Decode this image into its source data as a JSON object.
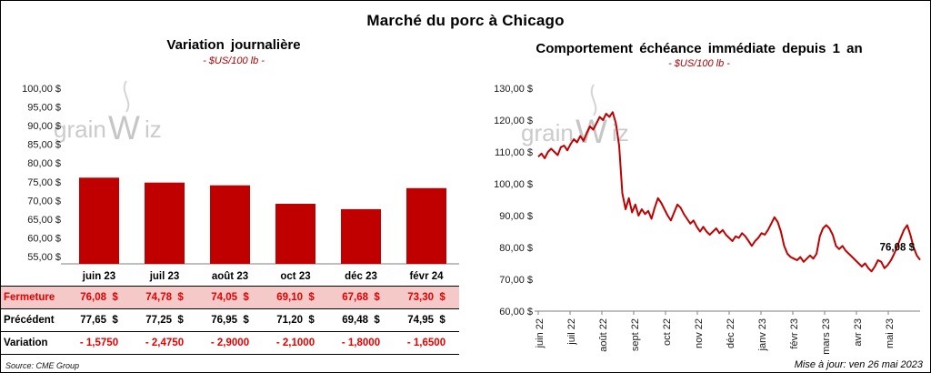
{
  "page": {
    "title": "Marché du porc à Chicago",
    "source": "Source: CME Group",
    "updated": "Mise à jour: ven 26 mai 2023",
    "watermark_parts": [
      "grain",
      "W",
      "iz"
    ]
  },
  "colors": {
    "bar": "#c00000",
    "line": "#c00000",
    "highlight_row_bg": "#f6c9c9",
    "table_red": "#e60000",
    "subtitle_red": "#b00000"
  },
  "chart_data": [
    {
      "type": "bar",
      "title": "Variation journalière",
      "subtitle": "- $US/100 lb -",
      "categories": [
        "juin 23",
        "juil 23",
        "août 23",
        "oct 23",
        "déc 23",
        "févr 24"
      ],
      "values": [
        76.08,
        74.78,
        74.05,
        69.1,
        67.68,
        73.3
      ],
      "ylim": [
        53,
        101.5
      ],
      "yticks": [
        55,
        60,
        65,
        70,
        75,
        80,
        85,
        90,
        95,
        100
      ],
      "ytick_labels": [
        "55,00 $",
        "60,00 $",
        "65,00 $",
        "70,00 $",
        "75,00 $",
        "80,00 $",
        "85,00 $",
        "90,00 $",
        "95,00 $",
        "100,00 $"
      ],
      "grid": false,
      "legend": false
    },
    {
      "type": "line",
      "title": "Comportement échéance immédiate depuis 1 an",
      "subtitle": "- $US/100 lb -",
      "x_labels": [
        "juin 22",
        "juil 22",
        "août 22",
        "sept 22",
        "oct 22",
        "nov 22",
        "déc 22",
        "janv 23",
        "févr 23",
        "mars 23",
        "avr 23",
        "mai 23"
      ],
      "values": [
        108.5,
        109.5,
        108,
        110,
        111,
        110,
        109,
        111.5,
        112,
        110.5,
        112.5,
        114,
        113,
        115,
        113.5,
        116,
        118,
        117,
        119,
        121,
        120,
        122,
        121,
        122.5,
        119,
        112,
        97,
        92,
        95.5,
        91,
        93.5,
        90,
        92,
        90.5,
        91.5,
        89,
        92.5,
        95.5,
        94,
        92,
        90,
        88.5,
        91,
        93.5,
        92.5,
        90.5,
        89,
        87.5,
        88.5,
        86.5,
        85,
        86.5,
        85,
        84,
        85,
        86,
        84.5,
        85.5,
        84,
        83,
        82,
        83.5,
        83,
        84.5,
        83.5,
        82,
        80.5,
        82,
        83,
        84.5,
        84,
        85.5,
        87.5,
        89.5,
        88,
        85,
        80.5,
        78,
        77,
        76.5,
        76,
        77,
        75.5,
        76.5,
        77.5,
        76.5,
        78,
        83.5,
        86,
        87,
        86,
        84,
        80.5,
        79.5,
        80.5,
        79,
        78,
        77,
        76,
        75,
        74,
        75,
        73.5,
        72.5,
        74,
        76,
        75.5,
        73.5,
        74.5,
        76,
        78,
        80.5,
        83,
        85.5,
        87,
        84,
        80,
        77.5,
        76.08
      ],
      "ylim": [
        57,
        132
      ],
      "yticks": [
        60,
        70,
        80,
        90,
        100,
        110,
        120,
        130
      ],
      "ytick_labels": [
        "60,00 $",
        "70,00 $",
        "80,00 $",
        "90,00 $",
        "100,00 $",
        "110,00 $",
        "120,00 $",
        "130,00 $"
      ],
      "end_label": "76,08 $",
      "grid": false,
      "legend": false
    }
  ],
  "table": {
    "months": [
      "juin 23",
      "juil 23",
      "août 23",
      "oct 23",
      "déc 23",
      "févr 24"
    ],
    "rows": [
      {
        "label": "Fermeture",
        "style": "highlight",
        "values": [
          "76,08  $",
          "74,78  $",
          "74,05  $",
          "69,10  $",
          "67,68  $",
          "73,30  $"
        ]
      },
      {
        "label": "Précédent",
        "style": "normal",
        "values": [
          "77,65  $",
          "77,25  $",
          "76,95  $",
          "71,20  $",
          "69,48  $",
          "74,95  $"
        ]
      },
      {
        "label": "Variation",
        "style": "variation",
        "values": [
          "- 1,5750",
          "- 2,4750",
          "- 2,9000",
          "- 2,1000",
          "- 1,8000",
          "- 1,6500"
        ]
      }
    ]
  }
}
